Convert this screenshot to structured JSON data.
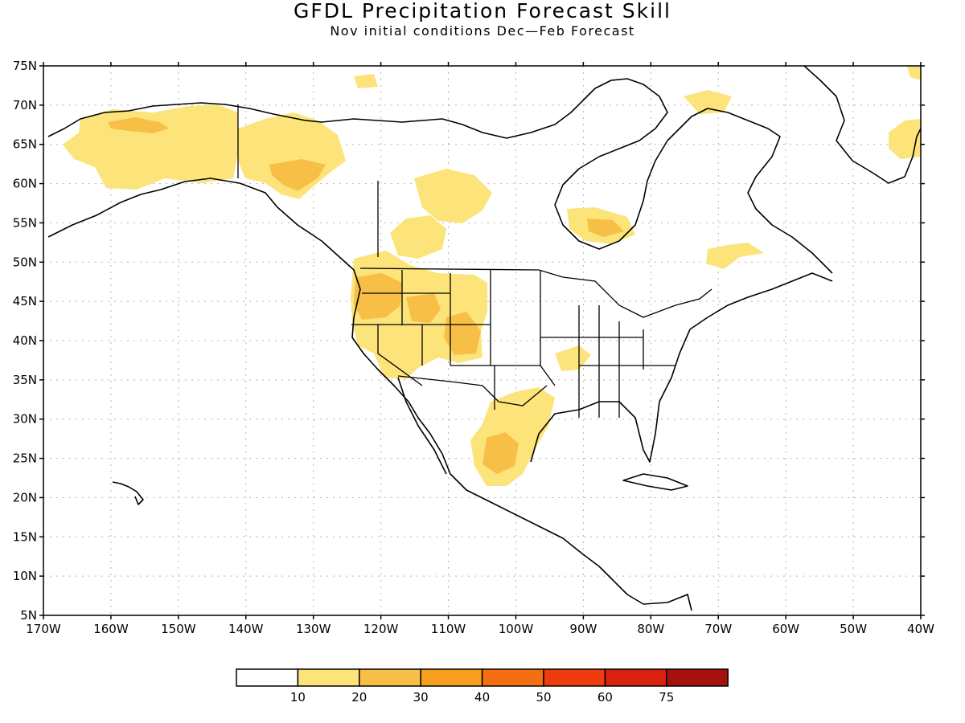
{
  "title": "GFDL Precipitation Forecast Skill",
  "subtitle": "Nov initial conditions  Dec—Feb Forecast",
  "map": {
    "lon_range": [
      -170,
      -40
    ],
    "lat_range": [
      5,
      75
    ],
    "lon_ticks": [
      "170W",
      "160W",
      "150W",
      "140W",
      "130W",
      "120W",
      "110W",
      "100W",
      "90W",
      "80W",
      "70W",
      "60W",
      "50W",
      "40W"
    ],
    "lat_ticks": [
      "5N",
      "10N",
      "15N",
      "20N",
      "25N",
      "30N",
      "35N",
      "40N",
      "45N",
      "50N",
      "55N",
      "60N",
      "65N",
      "70N",
      "75N"
    ],
    "grid": true
  },
  "colorbar": {
    "labels": [
      "10",
      "20",
      "30",
      "40",
      "50",
      "60",
      "75"
    ],
    "colors": [
      "#ffffff",
      "#fce47a",
      "#f8bf46",
      "#f7a01d",
      "#f46f12",
      "#ee3c0e",
      "#d8210f",
      "#a5110d"
    ]
  },
  "skill_regions": [
    {
      "name": "alaska",
      "level": 1
    },
    {
      "name": "alaska-core",
      "level": 2
    },
    {
      "name": "yukon-bc",
      "level": 1
    },
    {
      "name": "bc-coast",
      "level": 2
    },
    {
      "name": "pacific-northwest",
      "level": 1
    },
    {
      "name": "oregon-core",
      "level": 2
    },
    {
      "name": "idaho",
      "level": 2
    },
    {
      "name": "colorado",
      "level": 2
    },
    {
      "name": "hudson-bay",
      "level": 1
    },
    {
      "name": "texas",
      "level": 1
    },
    {
      "name": "mexico-core",
      "level": 2
    },
    {
      "name": "greenland",
      "level": 1
    }
  ]
}
